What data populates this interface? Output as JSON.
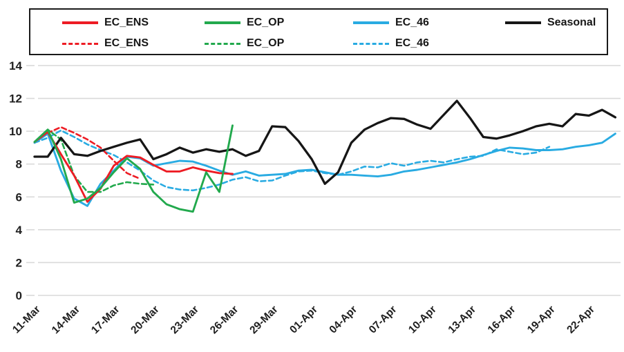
{
  "legend": {
    "row1": [
      {
        "label": "EC_ENS",
        "color": "#ed1c24",
        "style": "solid"
      },
      {
        "label": "EC_OP",
        "color": "#22a94d",
        "style": "solid"
      },
      {
        "label": "EC_46",
        "color": "#29abe2",
        "style": "solid"
      },
      {
        "label": "Seasonal",
        "color": "#161616",
        "style": "solid"
      }
    ],
    "row2": [
      {
        "label": "EC_ENS",
        "color": "#ed1c24",
        "style": "dashed"
      },
      {
        "label": "EC_OP",
        "color": "#22a94d",
        "style": "dashed"
      },
      {
        "label": "EC_46",
        "color": "#29abe2",
        "style": "dashed"
      }
    ]
  },
  "chart_data": {
    "type": "line",
    "title": "",
    "xlabel": "",
    "ylabel": "",
    "ylim": [
      0,
      14
    ],
    "y_ticks": [
      0,
      2,
      4,
      6,
      8,
      10,
      12,
      14
    ],
    "grid": "horizontal",
    "legend_position": "top",
    "x_tick_labels": [
      "11-Mar",
      "14-Mar",
      "17-Mar",
      "20-Mar",
      "23-Mar",
      "26-Mar",
      "29-Mar",
      "01-Apr",
      "04-Apr",
      "07-Apr",
      "10-Apr",
      "13-Apr",
      "16-Apr",
      "19-Apr",
      "22-Apr"
    ],
    "dates": [
      "11-Mar",
      "12-Mar",
      "13-Mar",
      "14-Mar",
      "15-Mar",
      "16-Mar",
      "17-Mar",
      "18-Mar",
      "19-Mar",
      "20-Mar",
      "21-Mar",
      "22-Mar",
      "23-Mar",
      "24-Mar",
      "25-Mar",
      "26-Mar",
      "27-Mar",
      "28-Mar",
      "29-Mar",
      "30-Mar",
      "31-Mar",
      "01-Apr",
      "02-Apr",
      "03-Apr",
      "04-Apr",
      "05-Apr",
      "06-Apr",
      "07-Apr",
      "08-Apr",
      "09-Apr",
      "10-Apr",
      "11-Apr",
      "12-Apr",
      "13-Apr",
      "14-Apr",
      "15-Apr",
      "16-Apr",
      "17-Apr",
      "18-Apr",
      "19-Apr",
      "20-Apr",
      "21-Apr",
      "22-Apr",
      "23-Apr",
      "24-Apr"
    ],
    "series": [
      {
        "name": "EC_46",
        "color": "#29abe2",
        "dash": true,
        "width": 2.6,
        "values": [
          9.3,
          9.6,
          10.05,
          9.65,
          9.2,
          8.85,
          8.55,
          8.1,
          7.6,
          7.0,
          6.6,
          6.45,
          6.4,
          6.55,
          6.75,
          7.05,
          7.2,
          6.95,
          7.0,
          7.3,
          7.55,
          7.6,
          7.45,
          7.35,
          7.55,
          7.85,
          7.8,
          8.05,
          7.9,
          8.1,
          8.2,
          8.1,
          8.3,
          8.45,
          8.5,
          8.9,
          8.75,
          8.6,
          8.7,
          9.05
        ]
      },
      {
        "name": "EC_ENS",
        "color": "#ed1c24",
        "dash": true,
        "width": 2.6,
        "values": [
          9.3,
          9.9,
          10.25,
          9.9,
          9.5,
          9.0,
          8.2,
          7.45,
          7.1
        ]
      },
      {
        "name": "EC_OP",
        "color": "#22a94d",
        "dash": true,
        "width": 2.6,
        "values": [
          9.3,
          10.1,
          9.5,
          7.3,
          6.3,
          6.3,
          6.7,
          6.9,
          6.8,
          6.75
        ]
      },
      {
        "name": "EC_46",
        "color": "#29abe2",
        "dash": false,
        "width": 2.9,
        "values": [
          9.3,
          9.85,
          7.6,
          5.9,
          5.45,
          6.8,
          7.6,
          8.45,
          8.35,
          7.9,
          8.05,
          8.2,
          8.15,
          7.9,
          7.6,
          7.35,
          7.55,
          7.3,
          7.35,
          7.4,
          7.6,
          7.65,
          7.5,
          7.35,
          7.35,
          7.3,
          7.25,
          7.35,
          7.55,
          7.65,
          7.8,
          7.95,
          8.1,
          8.3,
          8.55,
          8.8,
          9.0,
          8.95,
          8.85,
          8.85,
          8.9,
          9.05,
          9.15,
          9.3,
          9.85
        ]
      },
      {
        "name": "Seasonal",
        "color": "#161616",
        "dash": false,
        "width": 3.3,
        "values": [
          8.45,
          8.45,
          9.6,
          8.6,
          8.5,
          8.8,
          9.05,
          9.3,
          9.5,
          8.3,
          8.6,
          9.0,
          8.7,
          8.9,
          8.75,
          8.9,
          8.5,
          8.8,
          10.3,
          10.25,
          9.4,
          8.3,
          6.8,
          7.5,
          9.3,
          10.1,
          10.5,
          10.8,
          10.75,
          10.4,
          10.15,
          11.0,
          11.85,
          10.8,
          9.65,
          9.55,
          9.75,
          10.0,
          10.3,
          10.45,
          10.3,
          11.05,
          10.95,
          11.3,
          10.85
        ]
      },
      {
        "name": "EC_ENS",
        "color": "#ed1c24",
        "dash": false,
        "width": 2.9,
        "values": [
          9.35,
          9.95,
          8.6,
          7.3,
          5.7,
          6.5,
          7.9,
          8.5,
          8.4,
          7.95,
          7.55,
          7.55,
          7.8,
          7.6,
          7.45,
          7.4
        ]
      },
      {
        "name": "EC_OP",
        "color": "#22a94d",
        "dash": false,
        "width": 2.9,
        "values": [
          9.35,
          10.1,
          8.3,
          5.65,
          5.9,
          6.55,
          7.5,
          8.35,
          7.7,
          6.3,
          5.55,
          5.25,
          5.1,
          7.5,
          6.3,
          10.35
        ]
      }
    ]
  },
  "colors": {
    "grid": "#d9d9d9",
    "tick_text": "#1f1f1f",
    "background": "#ffffff"
  }
}
